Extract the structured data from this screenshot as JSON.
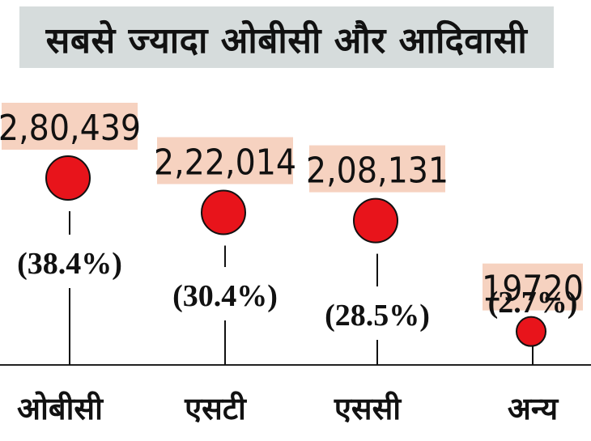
{
  "chart_data": {
    "type": "scatter",
    "title": "सबसे ज्यादा ओबीसी और आदिवासी",
    "categories": [
      "ओबीसी",
      "एसटी",
      "एससी",
      "अन्य"
    ],
    "values": [
      280439,
      222014,
      208131,
      19720
    ],
    "value_labels": [
      "2,80,439",
      "2,22,014",
      "2,08,131",
      "19720"
    ],
    "percent_labels": [
      "(38.4%)",
      "(30.4%)",
      "(28.5%)",
      "(2.7%)"
    ],
    "percents": [
      38.4,
      30.4,
      28.5,
      2.7
    ],
    "colors": {
      "bubble": "#e8141b",
      "label_bg": "#f6d2c0",
      "title_bg": "#d6dcdc"
    }
  }
}
